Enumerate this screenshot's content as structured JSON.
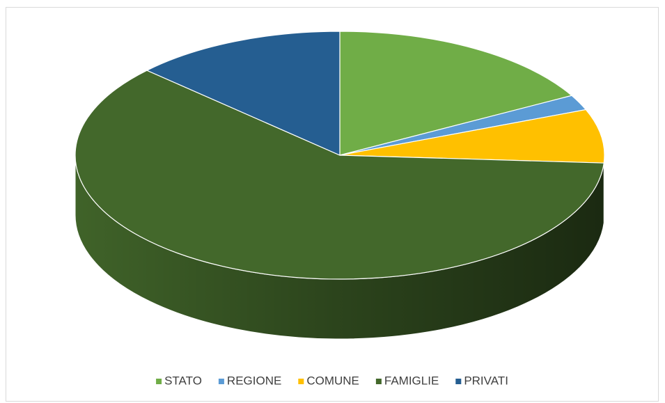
{
  "chart_data": {
    "type": "pie3d",
    "categories": [
      "STATO",
      "REGIONE",
      "COMUNE",
      "FAMIGLIE",
      "PRIVATI"
    ],
    "values": [
      17,
      2,
      7,
      61,
      13
    ],
    "colors": [
      "#70ad47",
      "#5b9bd5",
      "#ffc000",
      "#43682b",
      "#255e91"
    ],
    "legend": "bottom"
  }
}
